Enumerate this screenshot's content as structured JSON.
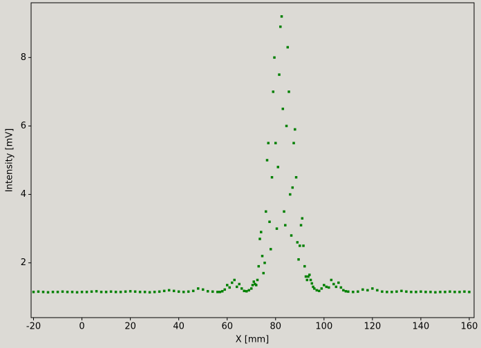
{
  "chart_data": {
    "type": "scatter",
    "xlabel": "X [mm]",
    "ylabel": "Intensity [mV]",
    "color": "#008000",
    "xlim": [
      -21,
      162
    ],
    "ylim": [
      0.4,
      9.6
    ],
    "xticks": [
      -20,
      0,
      20,
      40,
      60,
      80,
      100,
      120,
      140,
      160
    ],
    "yticks": [
      2,
      4,
      6,
      8
    ],
    "x": [
      -20,
      -18,
      -16,
      -14,
      -12,
      -10,
      -8,
      -6,
      -4,
      -2,
      0,
      2,
      4,
      6,
      8,
      10,
      12,
      14,
      16,
      18,
      20,
      22,
      24,
      26,
      28,
      30,
      32,
      34,
      36,
      38,
      40,
      42,
      44,
      46,
      48,
      50,
      52,
      54,
      56,
      57,
      58,
      59,
      60,
      61,
      62,
      63,
      64,
      65,
      66,
      67,
      68,
      69,
      70,
      70.5,
      71,
      71.5,
      72,
      72.5,
      73,
      73.5,
      74,
      74.5,
      75,
      75.5,
      76,
      76.5,
      77,
      77.5,
      78,
      78.5,
      79,
      79.5,
      80,
      80.5,
      81,
      81.5,
      82,
      82.5,
      83,
      83.5,
      84,
      84.5,
      85,
      85.5,
      86,
      86.5,
      87,
      87.5,
      88,
      88.5,
      89,
      89.5,
      90,
      90.5,
      91,
      91.5,
      92,
      92.5,
      93,
      93.5,
      94,
      94.5,
      95,
      95.5,
      96,
      97,
      98,
      99,
      100,
      101,
      102,
      103,
      104,
      105,
      106,
      107,
      108,
      109,
      110,
      112,
      114,
      116,
      118,
      120,
      122,
      124,
      126,
      128,
      130,
      132,
      134,
      136,
      138,
      140,
      142,
      144,
      146,
      148,
      150,
      152,
      154,
      156,
      158,
      160
    ],
    "values": [
      1.15,
      1.16,
      1.15,
      1.14,
      1.15,
      1.15,
      1.16,
      1.15,
      1.15,
      1.14,
      1.15,
      1.15,
      1.16,
      1.17,
      1.15,
      1.15,
      1.16,
      1.15,
      1.15,
      1.16,
      1.17,
      1.16,
      1.15,
      1.15,
      1.14,
      1.15,
      1.16,
      1.18,
      1.2,
      1.18,
      1.16,
      1.15,
      1.16,
      1.18,
      1.25,
      1.22,
      1.17,
      1.16,
      1.15,
      1.15,
      1.17,
      1.22,
      1.35,
      1.28,
      1.42,
      1.5,
      1.3,
      1.38,
      1.25,
      1.18,
      1.17,
      1.2,
      1.25,
      1.35,
      1.45,
      1.38,
      1.35,
      1.5,
      1.9,
      2.7,
      2.9,
      2.2,
      1.7,
      2.0,
      3.5,
      5.0,
      5.5,
      3.2,
      2.4,
      4.5,
      7.0,
      8.0,
      5.5,
      3.0,
      4.8,
      7.5,
      8.9,
      9.2,
      6.5,
      3.5,
      3.1,
      6.0,
      8.3,
      7.0,
      4.0,
      2.8,
      4.2,
      5.5,
      5.9,
      4.5,
      2.6,
      2.1,
      2.5,
      3.1,
      3.3,
      2.5,
      1.9,
      1.6,
      1.5,
      1.6,
      1.65,
      1.5,
      1.4,
      1.3,
      1.25,
      1.2,
      1.18,
      1.25,
      1.35,
      1.3,
      1.28,
      1.5,
      1.38,
      1.3,
      1.42,
      1.28,
      1.2,
      1.17,
      1.16,
      1.15,
      1.16,
      1.22,
      1.2,
      1.25,
      1.2,
      1.16,
      1.15,
      1.15,
      1.16,
      1.18,
      1.16,
      1.15,
      1.15,
      1.16,
      1.15,
      1.15,
      1.14,
      1.15,
      1.15,
      1.16,
      1.15,
      1.15,
      1.16,
      1.15
    ]
  }
}
